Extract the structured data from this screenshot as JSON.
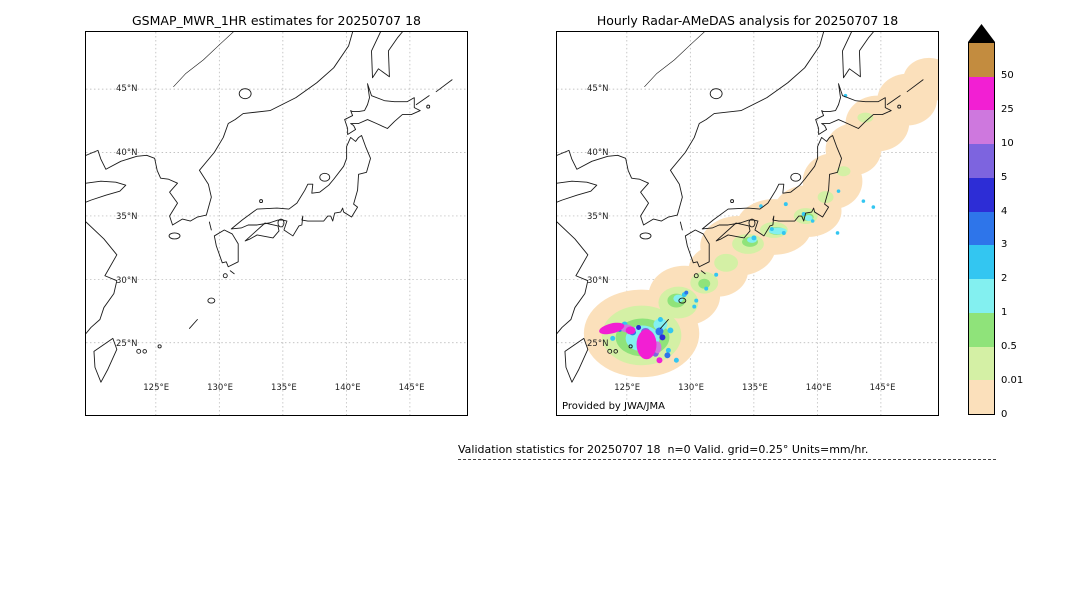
{
  "left_panel": {
    "title": "GSMAP_MWR_1HR estimates for 20250707 18"
  },
  "right_panel": {
    "title": "Hourly Radar-AMeDAS analysis for 20250707 18",
    "credit": "Provided by JWA/JMA"
  },
  "axes": {
    "lat_labels": [
      "45°N",
      "40°N",
      "35°N",
      "30°N",
      "25°N"
    ],
    "lon_labels": [
      "125°E",
      "130°E",
      "135°E",
      "140°E",
      "145°E"
    ]
  },
  "colorbar": {
    "units": "mm/hr",
    "tick_labels": [
      "50",
      "25",
      "10",
      "5",
      "4",
      "3",
      "2",
      "1",
      "0.5",
      "0.01",
      "0"
    ],
    "segments_top_to_bottom": [
      {
        "range": "> 50",
        "color": "tan"
      },
      {
        "range": "25-50",
        "color": "magenta"
      },
      {
        "range": "10-25",
        "color": "orchid"
      },
      {
        "range": "5-10",
        "color": "violet"
      },
      {
        "range": "4-5",
        "color": "dark-blue"
      },
      {
        "range": "3-4",
        "color": "blue"
      },
      {
        "range": "2-3",
        "color": "cyan"
      },
      {
        "range": "1-2",
        "color": "light-cyan"
      },
      {
        "range": "0.5-1",
        "color": "green"
      },
      {
        "range": "0.01-0.5",
        "color": "pale-green"
      },
      {
        "range": "0-0.01",
        "color": "peach"
      }
    ]
  },
  "footer": {
    "text": "Validation statistics for 20250707 18  n=0 Valid. grid=0.25° Units=mm/hr."
  },
  "palette": {
    "tan": "#C38C3F",
    "magenta": "#F21FD3",
    "orchid": "#CE78DE",
    "violet": "#7D64DF",
    "dark-blue": "#2D2DD6",
    "blue": "#2E75EA",
    "cyan": "#33C6F1",
    "light-cyan": "#83F0F0",
    "green": "#8FE37A",
    "pale-green": "#D4F0A5",
    "peach": "#FBE0BB",
    "coast": "#1A1A1A",
    "grid": "#B0B0B0",
    "triangle": "#000000"
  }
}
